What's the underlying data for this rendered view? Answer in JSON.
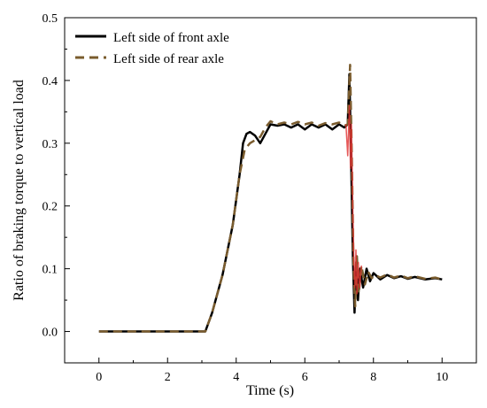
{
  "chart_data": {
    "type": "line",
    "title": "",
    "xlabel": "Time (s)",
    "ylabel": "Ratio of braking torque to vertical load",
    "xlim": [
      -1,
      11
    ],
    "ylim": [
      -0.05,
      0.5
    ],
    "xticks": [
      0,
      2,
      4,
      6,
      8,
      10
    ],
    "yticks": [
      0.0,
      0.1,
      0.2,
      0.3,
      0.4,
      0.5
    ],
    "xtick_labels": [
      "0",
      "2",
      "4",
      "6",
      "8",
      "10"
    ],
    "ytick_labels": [
      "0.0",
      "0.1",
      "0.2",
      "0.3",
      "0.4",
      "0.5"
    ],
    "grid": false,
    "legend_position": "top-left",
    "series": [
      {
        "name": "Left side of front axle",
        "color": "#000000",
        "style": "solid",
        "points": [
          [
            0,
            0
          ],
          [
            1,
            0
          ],
          [
            2,
            0
          ],
          [
            3,
            0
          ],
          [
            3.1,
            0
          ],
          [
            3.3,
            0.03
          ],
          [
            3.6,
            0.09
          ],
          [
            3.9,
            0.17
          ],
          [
            4.1,
            0.25
          ],
          [
            4.2,
            0.3
          ],
          [
            4.3,
            0.315
          ],
          [
            4.4,
            0.318
          ],
          [
            4.55,
            0.312
          ],
          [
            4.7,
            0.3
          ],
          [
            4.85,
            0.315
          ],
          [
            5.0,
            0.33
          ],
          [
            5.2,
            0.328
          ],
          [
            5.4,
            0.33
          ],
          [
            5.6,
            0.325
          ],
          [
            5.8,
            0.33
          ],
          [
            6.0,
            0.322
          ],
          [
            6.2,
            0.33
          ],
          [
            6.4,
            0.325
          ],
          [
            6.6,
            0.33
          ],
          [
            6.8,
            0.322
          ],
          [
            7.0,
            0.33
          ],
          [
            7.15,
            0.325
          ],
          [
            7.25,
            0.33
          ],
          [
            7.3,
            0.41
          ],
          [
            7.35,
            0.27
          ],
          [
            7.4,
            0.12
          ],
          [
            7.45,
            0.03
          ],
          [
            7.5,
            0.11
          ],
          [
            7.55,
            0.05
          ],
          [
            7.6,
            0.1
          ],
          [
            7.7,
            0.07
          ],
          [
            7.8,
            0.1
          ],
          [
            7.9,
            0.08
          ],
          [
            8.0,
            0.093
          ],
          [
            8.2,
            0.083
          ],
          [
            8.4,
            0.09
          ],
          [
            8.6,
            0.085
          ],
          [
            8.8,
            0.088
          ],
          [
            9.0,
            0.084
          ],
          [
            9.2,
            0.087
          ],
          [
            9.5,
            0.083
          ],
          [
            9.8,
            0.085
          ],
          [
            10.0,
            0.083
          ]
        ]
      },
      {
        "name": "Left side of rear axle",
        "color": "#7a5c2e",
        "style": "dashed",
        "points": [
          [
            0,
            0
          ],
          [
            1,
            0
          ],
          [
            2,
            0
          ],
          [
            3,
            0
          ],
          [
            3.1,
            0
          ],
          [
            3.3,
            0.03
          ],
          [
            3.6,
            0.09
          ],
          [
            3.9,
            0.17
          ],
          [
            4.1,
            0.25
          ],
          [
            4.25,
            0.29
          ],
          [
            4.4,
            0.3
          ],
          [
            4.55,
            0.305
          ],
          [
            4.7,
            0.31
          ],
          [
            4.85,
            0.325
          ],
          [
            5.0,
            0.335
          ],
          [
            5.2,
            0.33
          ],
          [
            5.4,
            0.333
          ],
          [
            5.6,
            0.33
          ],
          [
            5.8,
            0.334
          ],
          [
            6.0,
            0.33
          ],
          [
            6.2,
            0.333
          ],
          [
            6.4,
            0.328
          ],
          [
            6.6,
            0.332
          ],
          [
            6.8,
            0.33
          ],
          [
            7.0,
            0.333
          ],
          [
            7.15,
            0.328
          ],
          [
            7.25,
            0.33
          ],
          [
            7.32,
            0.425
          ],
          [
            7.37,
            0.28
          ],
          [
            7.42,
            0.1
          ],
          [
            7.47,
            0.04
          ],
          [
            7.52,
            0.12
          ],
          [
            7.57,
            0.06
          ],
          [
            7.65,
            0.105
          ],
          [
            7.75,
            0.075
          ],
          [
            7.85,
            0.095
          ],
          [
            7.95,
            0.085
          ],
          [
            8.05,
            0.09
          ],
          [
            8.2,
            0.086
          ],
          [
            8.4,
            0.091
          ],
          [
            8.6,
            0.086
          ],
          [
            8.8,
            0.089
          ],
          [
            9.0,
            0.085
          ],
          [
            9.2,
            0.088
          ],
          [
            9.5,
            0.084
          ],
          [
            9.8,
            0.086
          ],
          [
            10.0,
            0.083
          ]
        ]
      }
    ],
    "annotation_noise": {
      "name": "red high-frequency oscillation overlay",
      "color": "#e03030",
      "points": [
        [
          7.2,
          0.33
        ],
        [
          7.25,
          0.28
        ],
        [
          7.3,
          0.36
        ],
        [
          7.33,
          0.26
        ],
        [
          7.36,
          0.33
        ],
        [
          7.4,
          0.19
        ],
        [
          7.43,
          0.11
        ],
        [
          7.46,
          0.07
        ],
        [
          7.49,
          0.13
        ],
        [
          7.52,
          0.06
        ],
        [
          7.56,
          0.11
        ],
        [
          7.6,
          0.07
        ],
        [
          7.65,
          0.105
        ]
      ]
    }
  }
}
